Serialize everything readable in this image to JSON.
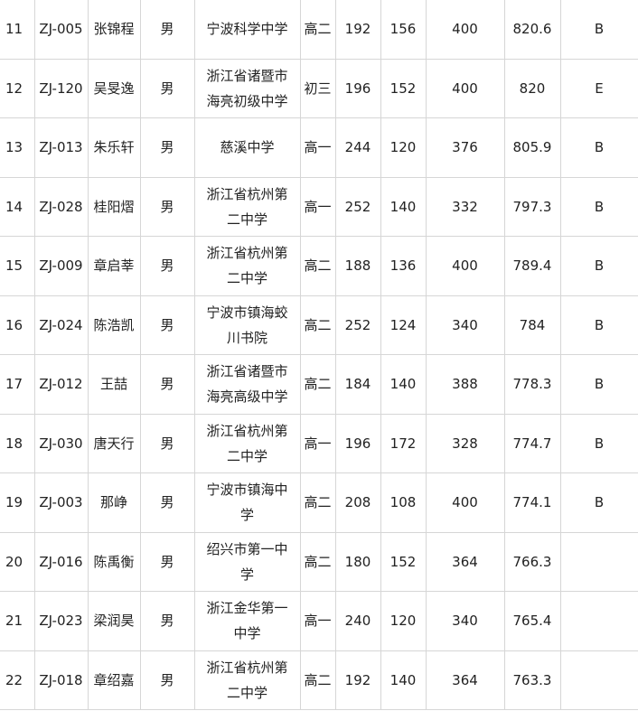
{
  "table": {
    "rows": [
      {
        "rank": "11",
        "id": "ZJ-005",
        "name": "张锦程",
        "gender": "男",
        "school": "宁波科学中学",
        "grade": "高二",
        "s1": "192",
        "s2": "156",
        "s3": "400",
        "total": "820.6",
        "level": "B"
      },
      {
        "rank": "12",
        "id": "ZJ-120",
        "name": "吴旻逸",
        "gender": "男",
        "school": "浙江省诸暨市海亮初级中学",
        "grade": "初三",
        "s1": "196",
        "s2": "152",
        "s3": "400",
        "total": "820",
        "level": "E"
      },
      {
        "rank": "13",
        "id": "ZJ-013",
        "name": "朱乐轩",
        "gender": "男",
        "school": "慈溪中学",
        "grade": "高一",
        "s1": "244",
        "s2": "120",
        "s3": "376",
        "total": "805.9",
        "level": "B"
      },
      {
        "rank": "14",
        "id": "ZJ-028",
        "name": "桂阳熠",
        "gender": "男",
        "school": "浙江省杭州第二中学",
        "grade": "高一",
        "s1": "252",
        "s2": "140",
        "s3": "332",
        "total": "797.3",
        "level": "B"
      },
      {
        "rank": "15",
        "id": "ZJ-009",
        "name": "章启莘",
        "gender": "男",
        "school": "浙江省杭州第二中学",
        "grade": "高二",
        "s1": "188",
        "s2": "136",
        "s3": "400",
        "total": "789.4",
        "level": "B"
      },
      {
        "rank": "16",
        "id": "ZJ-024",
        "name": "陈浩凯",
        "gender": "男",
        "school": "宁波市镇海蛟川书院",
        "grade": "高二",
        "s1": "252",
        "s2": "124",
        "s3": "340",
        "total": "784",
        "level": "B"
      },
      {
        "rank": "17",
        "id": "ZJ-012",
        "name": "王喆",
        "gender": "男",
        "school": "浙江省诸暨市海亮高级中学",
        "grade": "高二",
        "s1": "184",
        "s2": "140",
        "s3": "388",
        "total": "778.3",
        "level": "B"
      },
      {
        "rank": "18",
        "id": "ZJ-030",
        "name": "唐天行",
        "gender": "男",
        "school": "浙江省杭州第二中学",
        "grade": "高一",
        "s1": "196",
        "s2": "172",
        "s3": "328",
        "total": "774.7",
        "level": "B"
      },
      {
        "rank": "19",
        "id": "ZJ-003",
        "name": "那峥",
        "gender": "男",
        "school": "宁波市镇海中学",
        "grade": "高二",
        "s1": "208",
        "s2": "108",
        "s3": "400",
        "total": "774.1",
        "level": "B"
      },
      {
        "rank": "20",
        "id": "ZJ-016",
        "name": "陈禹衡",
        "gender": "男",
        "school": "绍兴市第一中学",
        "grade": "高二",
        "s1": "180",
        "s2": "152",
        "s3": "364",
        "total": "766.3",
        "level": ""
      },
      {
        "rank": "21",
        "id": "ZJ-023",
        "name": "梁润昊",
        "gender": "男",
        "school": "浙江金华第一中学",
        "grade": "高一",
        "s1": "240",
        "s2": "120",
        "s3": "340",
        "total": "765.4",
        "level": ""
      },
      {
        "rank": "22",
        "id": "ZJ-018",
        "name": "章绍嘉",
        "gender": "男",
        "school": "浙江省杭州第二中学",
        "grade": "高二",
        "s1": "192",
        "s2": "140",
        "s3": "364",
        "total": "763.3",
        "level": ""
      }
    ]
  }
}
